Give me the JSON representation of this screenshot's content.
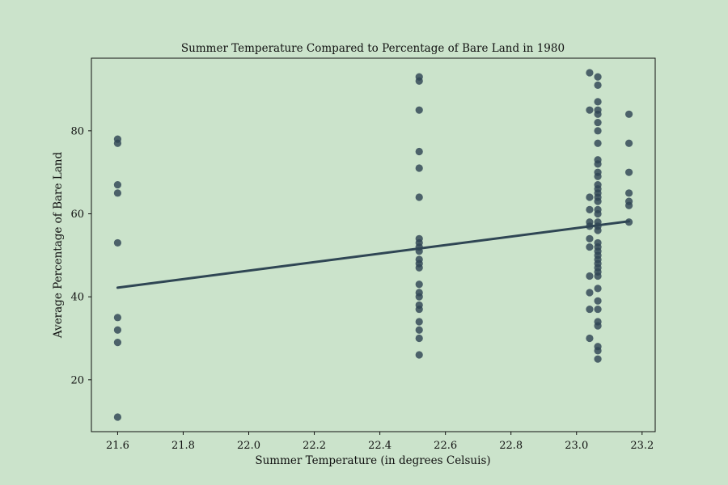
{
  "chart_data": {
    "type": "scatter",
    "title": "Summer Temperature Compared to Percentage of Bare Land in 1980",
    "xlabel": "Summer Temperature (in degrees Celsuis)",
    "ylabel": "Average Percentage of Bare Land",
    "xlim": [
      21.52,
      23.24
    ],
    "ylim": [
      7.5,
      97.5
    ],
    "xticks": [
      "21.6",
      "21.8",
      "22.0",
      "22.2",
      "22.4",
      "22.6",
      "22.8",
      "23.0",
      "23.2"
    ],
    "yticks": [
      "20",
      "40",
      "60",
      "80"
    ],
    "grid": false,
    "colors": {
      "background": "#cbe3cb",
      "points": "#2f4654",
      "line": "#2f4654"
    },
    "points": [
      {
        "x": 21.6,
        "y": 78
      },
      {
        "x": 21.6,
        "y": 77
      },
      {
        "x": 21.6,
        "y": 67
      },
      {
        "x": 21.6,
        "y": 65
      },
      {
        "x": 21.6,
        "y": 53
      },
      {
        "x": 21.6,
        "y": 35
      },
      {
        "x": 21.6,
        "y": 32
      },
      {
        "x": 21.6,
        "y": 29
      },
      {
        "x": 21.6,
        "y": 11
      },
      {
        "x": 22.52,
        "y": 93
      },
      {
        "x": 22.52,
        "y": 92
      },
      {
        "x": 22.52,
        "y": 85
      },
      {
        "x": 22.52,
        "y": 75
      },
      {
        "x": 22.52,
        "y": 71
      },
      {
        "x": 22.52,
        "y": 64
      },
      {
        "x": 22.52,
        "y": 54
      },
      {
        "x": 22.52,
        "y": 53
      },
      {
        "x": 22.52,
        "y": 52
      },
      {
        "x": 22.52,
        "y": 51
      },
      {
        "x": 22.52,
        "y": 49
      },
      {
        "x": 22.52,
        "y": 48
      },
      {
        "x": 22.52,
        "y": 47
      },
      {
        "x": 22.52,
        "y": 43
      },
      {
        "x": 22.52,
        "y": 41
      },
      {
        "x": 22.52,
        "y": 40
      },
      {
        "x": 22.52,
        "y": 38
      },
      {
        "x": 22.52,
        "y": 37
      },
      {
        "x": 22.52,
        "y": 34
      },
      {
        "x": 22.52,
        "y": 32
      },
      {
        "x": 22.52,
        "y": 30
      },
      {
        "x": 22.52,
        "y": 26
      },
      {
        "x": 23.04,
        "y": 94
      },
      {
        "x": 23.04,
        "y": 85
      },
      {
        "x": 23.04,
        "y": 64
      },
      {
        "x": 23.04,
        "y": 61
      },
      {
        "x": 23.04,
        "y": 58
      },
      {
        "x": 23.04,
        "y": 57
      },
      {
        "x": 23.04,
        "y": 54
      },
      {
        "x": 23.04,
        "y": 52
      },
      {
        "x": 23.04,
        "y": 45
      },
      {
        "x": 23.04,
        "y": 41
      },
      {
        "x": 23.04,
        "y": 37
      },
      {
        "x": 23.04,
        "y": 30
      },
      {
        "x": 23.065,
        "y": 93
      },
      {
        "x": 23.065,
        "y": 91
      },
      {
        "x": 23.065,
        "y": 87
      },
      {
        "x": 23.065,
        "y": 85
      },
      {
        "x": 23.065,
        "y": 84
      },
      {
        "x": 23.065,
        "y": 82
      },
      {
        "x": 23.065,
        "y": 80
      },
      {
        "x": 23.065,
        "y": 77
      },
      {
        "x": 23.065,
        "y": 73
      },
      {
        "x": 23.065,
        "y": 72
      },
      {
        "x": 23.065,
        "y": 70
      },
      {
        "x": 23.065,
        "y": 69
      },
      {
        "x": 23.065,
        "y": 67
      },
      {
        "x": 23.065,
        "y": 66
      },
      {
        "x": 23.065,
        "y": 65
      },
      {
        "x": 23.065,
        "y": 64
      },
      {
        "x": 23.065,
        "y": 63
      },
      {
        "x": 23.065,
        "y": 61
      },
      {
        "x": 23.065,
        "y": 60
      },
      {
        "x": 23.065,
        "y": 58
      },
      {
        "x": 23.065,
        "y": 57
      },
      {
        "x": 23.065,
        "y": 56
      },
      {
        "x": 23.065,
        "y": 53
      },
      {
        "x": 23.065,
        "y": 52
      },
      {
        "x": 23.065,
        "y": 51
      },
      {
        "x": 23.065,
        "y": 50
      },
      {
        "x": 23.065,
        "y": 49
      },
      {
        "x": 23.065,
        "y": 48
      },
      {
        "x": 23.065,
        "y": 47
      },
      {
        "x": 23.065,
        "y": 46
      },
      {
        "x": 23.065,
        "y": 45
      },
      {
        "x": 23.065,
        "y": 42
      },
      {
        "x": 23.065,
        "y": 39
      },
      {
        "x": 23.065,
        "y": 37
      },
      {
        "x": 23.065,
        "y": 34
      },
      {
        "x": 23.065,
        "y": 33
      },
      {
        "x": 23.065,
        "y": 28
      },
      {
        "x": 23.065,
        "y": 27
      },
      {
        "x": 23.065,
        "y": 25
      },
      {
        "x": 23.16,
        "y": 84
      },
      {
        "x": 23.16,
        "y": 77
      },
      {
        "x": 23.16,
        "y": 70
      },
      {
        "x": 23.16,
        "y": 65
      },
      {
        "x": 23.16,
        "y": 63
      },
      {
        "x": 23.16,
        "y": 62
      },
      {
        "x": 23.16,
        "y": 58
      }
    ],
    "trendline": {
      "x": [
        21.6,
        23.16
      ],
      "y": [
        42.2,
        58.2
      ]
    }
  }
}
